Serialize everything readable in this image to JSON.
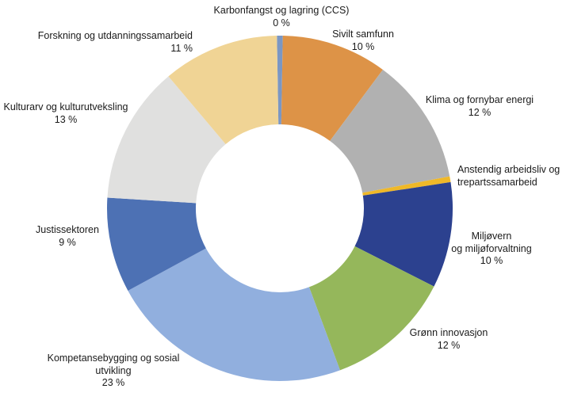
{
  "chart_data": {
    "type": "pie",
    "style": "donut",
    "title": "",
    "legend_position": "none",
    "labels_position": "outside",
    "percent_unit": "%",
    "segments": [
      {
        "label": "Karbonfangst og lagring (CCS)",
        "percent_label": "0 %",
        "value": 0,
        "color": "#7B97C3"
      },
      {
        "label": "Sivilt samfunn",
        "percent_label": "10 %",
        "value": 10,
        "color": "#DD9347"
      },
      {
        "label": "Klima og fornybar energi",
        "percent_label": "12 %",
        "value": 12,
        "color": "#B1B1B1"
      },
      {
        "label": "Anstendig arbeidsliv og trepartssamarbeid",
        "percent_label": "",
        "value": 0,
        "color": "#EFB829"
      },
      {
        "label": "Miljøvern og miljøforvaltning",
        "percent_label": "10 %",
        "value": 10,
        "color": "#2C418F"
      },
      {
        "label": "Grønn innovasjon",
        "percent_label": "12 %",
        "value": 12,
        "color": "#95B75B"
      },
      {
        "label": "Kompetansebygging og sosial utvikling",
        "percent_label": "23 %",
        "value": 23,
        "color": "#91AFDE"
      },
      {
        "label": "Justissektoren",
        "percent_label": "9 %",
        "value": 9,
        "color": "#4D71B4"
      },
      {
        "label": "Kulturarv og kulturutveksling",
        "percent_label": "13 %",
        "value": 13,
        "color": "#E0E0DF"
      },
      {
        "label": "Forskning og utdanningssamarbeid",
        "percent_label": "11 %",
        "value": 11,
        "color": "#F0D495"
      }
    ]
  }
}
